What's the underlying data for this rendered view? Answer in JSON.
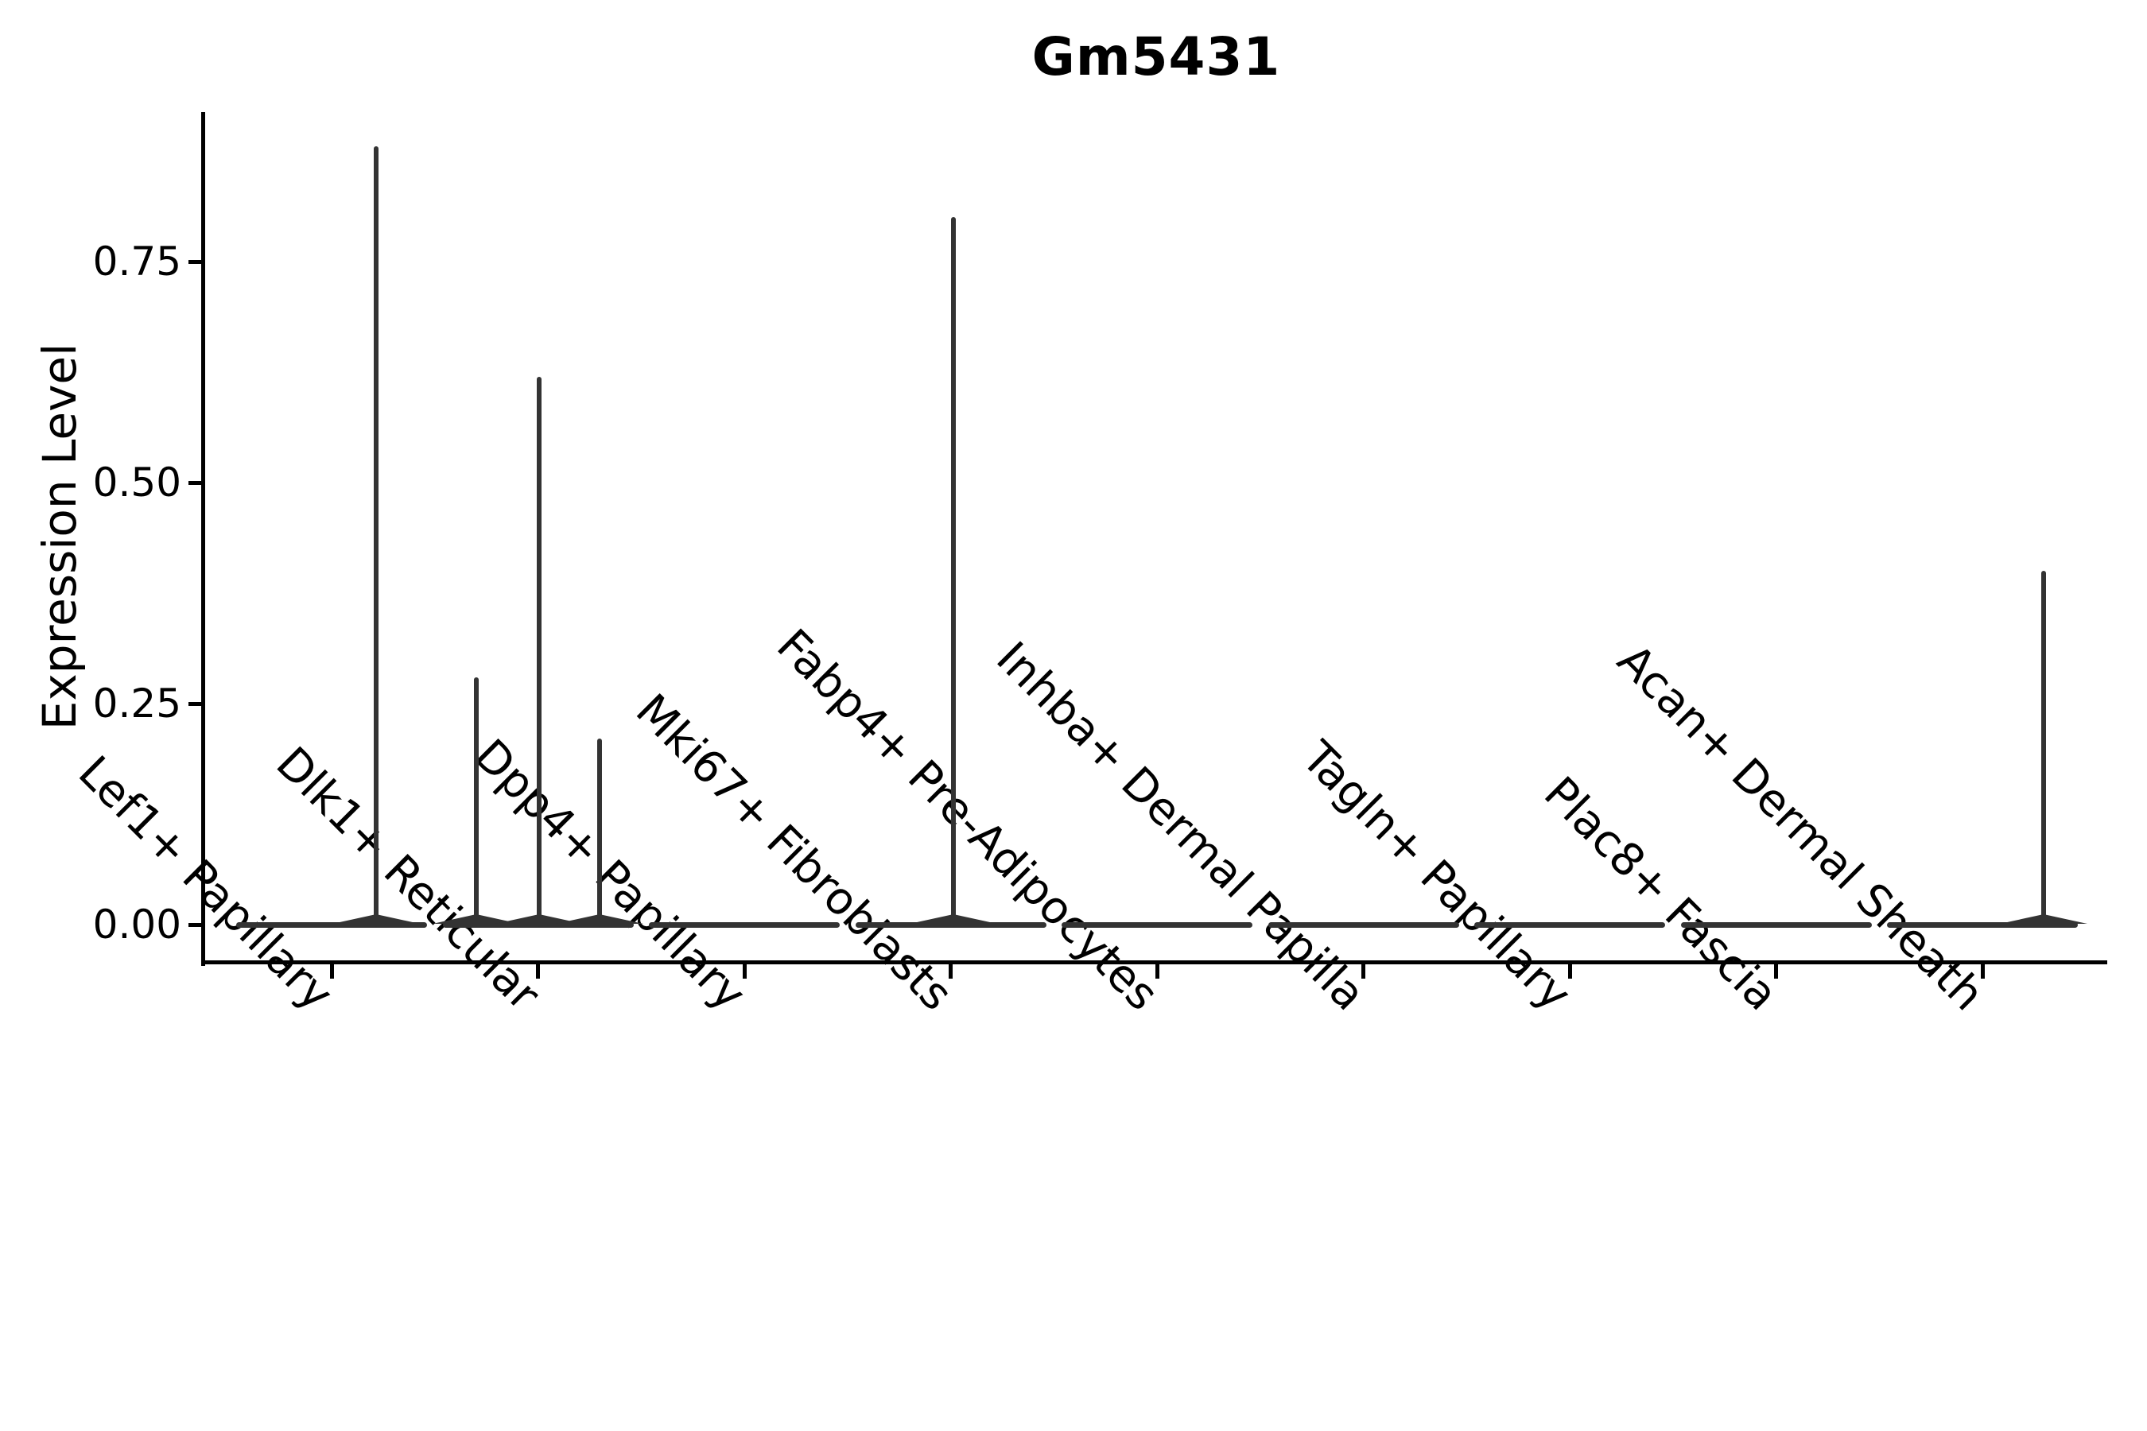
{
  "title": "Gm5431",
  "colors": {
    "background": "#ffffff",
    "axis": "#000000",
    "text": "#000000",
    "violin": "#333333"
  },
  "chart_data": {
    "type": "violin",
    "title": "Gm5431",
    "xlabel": "",
    "ylabel": "Expression Level",
    "ylim": [
      0,
      0.92
    ],
    "yticks": [
      0,
      0.25,
      0.5,
      0.75
    ],
    "ytick_labels": [
      "0.00",
      "0.25",
      "0.50",
      "0.75"
    ],
    "grid": false,
    "legend": "none",
    "violin_color": "#333333",
    "axis_color": "#000000",
    "categories": [
      "Lef1+ Papillary",
      "Dlk1+ Reticular",
      "Dpp4+ Papillary",
      "Mki67+ Fibroblasts",
      "Fabp4+ Pre-Adipocytes",
      "Inhba+ Dermal Papilla",
      "Tagln+ Papillary",
      "Plac8+ Fascia",
      "Acan+ Dermal Sheath"
    ],
    "violins": [
      {
        "category": "Lef1+ Papillary",
        "zero_mass": true,
        "expressed": [
          {
            "value": 0.88,
            "dx": 56
          }
        ]
      },
      {
        "category": "Dlk1+ Reticular",
        "zero_mass": true,
        "expressed": [
          {
            "value": 0.28,
            "dx": -78
          },
          {
            "value": 0.62,
            "dx": 1
          },
          {
            "value": 0.21,
            "dx": 77
          }
        ]
      },
      {
        "category": "Dpp4+ Papillary",
        "zero_mass": true,
        "expressed": []
      },
      {
        "category": "Mki67+ Fibroblasts",
        "zero_mass": true,
        "expressed": [
          {
            "value": 0.8,
            "dx": 3
          }
        ]
      },
      {
        "category": "Fabp4+ Pre-Adipocytes",
        "zero_mass": true,
        "expressed": []
      },
      {
        "category": "Inhba+ Dermal Papilla",
        "zero_mass": true,
        "expressed": []
      },
      {
        "category": "Tagln+ Papillary",
        "zero_mass": true,
        "expressed": []
      },
      {
        "category": "Plac8+ Fascia",
        "zero_mass": true,
        "expressed": []
      },
      {
        "category": "Acan+ Dermal Sheath",
        "zero_mass": true,
        "expressed": [
          {
            "value": 0.4,
            "dx": 77
          }
        ]
      }
    ]
  }
}
